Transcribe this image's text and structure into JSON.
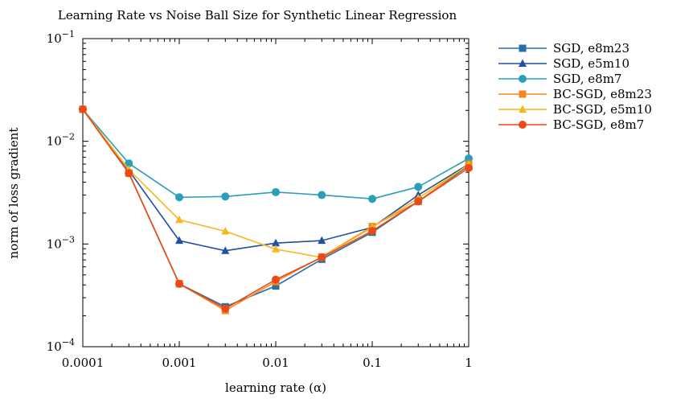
{
  "chart_data": {
    "type": "line",
    "title": "Learning Rate vs Noise Ball Size for Synthetic Linear Regression",
    "xlabel": "learning rate (α)",
    "ylabel": "norm of loss gradient",
    "xscale": "log",
    "yscale": "log",
    "xlim": [
      0.0001,
      1
    ],
    "ylim": [
      0.0001,
      0.1
    ],
    "x_ticks": [
      {
        "value": 0.0001,
        "label": "0.0001"
      },
      {
        "value": 0.001,
        "label": "0.001"
      },
      {
        "value": 0.01,
        "label": "0.01"
      },
      {
        "value": 0.1,
        "label": "0.1"
      },
      {
        "value": 1,
        "label": "1"
      }
    ],
    "y_ticks": [
      {
        "value": 0.0001,
        "base": "10",
        "exp": "−4"
      },
      {
        "value": 0.001,
        "base": "10",
        "exp": "−3"
      },
      {
        "value": 0.01,
        "base": "10",
        "exp": "−2"
      },
      {
        "value": 0.1,
        "base": "10",
        "exp": "−1"
      }
    ],
    "grid": false,
    "legend_position": "outside-right-top",
    "x": [
      0.0001,
      0.0003,
      0.001,
      0.003,
      0.01,
      0.03,
      0.1,
      0.3,
      1
    ],
    "series": [
      {
        "name": "SGD, e8m23",
        "color": "#2a6ea6",
        "marker": "square",
        "values": [
          0.0205,
          0.0049,
          0.00041,
          0.000245,
          0.00039,
          0.00071,
          0.0013,
          0.0026,
          0.0058
        ]
      },
      {
        "name": "SGD, e5m10",
        "color": "#1f4fa8",
        "marker": "triangle",
        "values": [
          0.0205,
          0.0052,
          0.00108,
          0.00086,
          0.00102,
          0.00108,
          0.00145,
          0.003,
          0.006
        ]
      },
      {
        "name": "SGD, e8m7",
        "color": "#2a9fb8",
        "marker": "circle",
        "values": [
          0.0205,
          0.0061,
          0.00285,
          0.0029,
          0.0032,
          0.003,
          0.00275,
          0.0036,
          0.0068
        ]
      },
      {
        "name": "BC-SGD, e8m23",
        "color": "#f5891f",
        "marker": "square",
        "values": [
          0.0205,
          0.0049,
          0.00041,
          0.000225,
          0.00043,
          0.00075,
          0.00148,
          0.0026,
          0.006
        ]
      },
      {
        "name": "BC-SGD, e5m10",
        "color": "#f7b81f",
        "marker": "triangle",
        "values": [
          0.0205,
          0.0053,
          0.00172,
          0.00133,
          0.00089,
          0.00074,
          0.00145,
          0.0028,
          0.0059
        ]
      },
      {
        "name": "BC-SGD, e8m7",
        "color": "#ea4a18",
        "marker": "circle",
        "values": [
          0.0205,
          0.0049,
          0.00041,
          0.000235,
          0.00045,
          0.00074,
          0.00134,
          0.0026,
          0.0055
        ]
      }
    ]
  }
}
